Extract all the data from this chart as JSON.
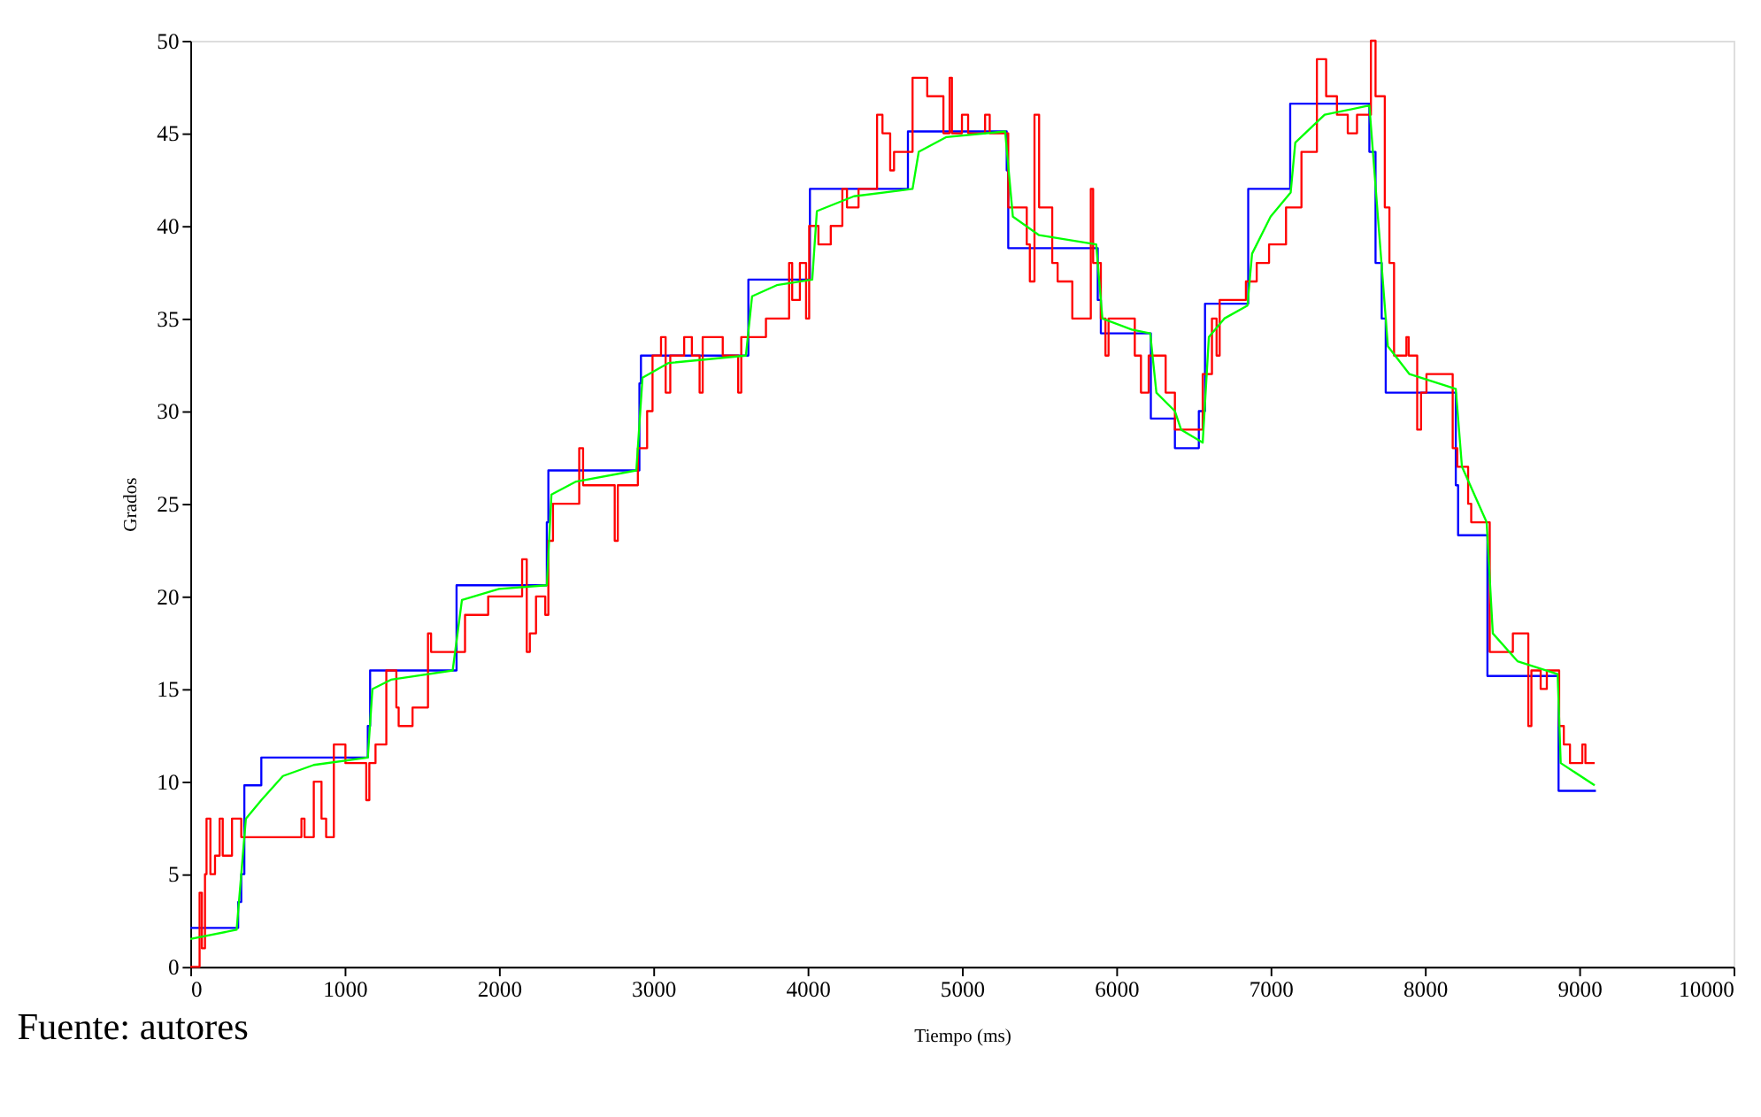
{
  "chart_data": {
    "type": "line",
    "xlabel": "Tiempo (ms)",
    "ylabel": "Grados",
    "annotations": [
      "Fuente: autores"
    ],
    "xlim": [
      0,
      10000
    ],
    "xticks": [
      0,
      1000,
      2000,
      3000,
      4000,
      5000,
      6000,
      7000,
      8000,
      9000,
      10000
    ],
    "ylim": [
      0,
      50
    ],
    "yticks": [
      0,
      5,
      10,
      15,
      20,
      25,
      30,
      35,
      40,
      45,
      50
    ],
    "grid": false,
    "line_style": "solid",
    "marker": "none",
    "series": [
      {
        "type": "step",
        "color": "#0000ff",
        "x": [
          0,
          310,
          330,
          350,
          460,
          1150,
          1165,
          1725,
          2310,
          2320,
          2910,
          2920,
          3616,
          4015,
          4650,
          5290,
          5300,
          5880,
          5900,
          6224,
          6380,
          6535,
          6575,
          6855,
          7127,
          7640,
          7680,
          7720,
          7746,
          8200,
          8215,
          8405,
          8866,
          9108
        ],
        "values": [
          2.1,
          3.5,
          5,
          9.8,
          11.3,
          13,
          16.0,
          20.6,
          24,
          26.8,
          31.5,
          33.0,
          37.1,
          42.0,
          45.1,
          43,
          38.8,
          36,
          34.2,
          29.6,
          28.0,
          30,
          35.8,
          42.0,
          46.6,
          44,
          38,
          35,
          31.0,
          26,
          23.3,
          15.7,
          9.5,
          9.5
        ]
      },
      {
        "type": "step",
        "color": "#ff0000",
        "x": [
          0,
          60,
          75,
          95,
          105,
          130,
          160,
          190,
          210,
          270,
          330,
          720,
          740,
          800,
          850,
          880,
          930,
          1005,
          1140,
          1160,
          1200,
          1270,
          1335,
          1350,
          1440,
          1540,
          1560,
          1780,
          1930,
          2150,
          2180,
          2200,
          2240,
          2300,
          2320,
          2350,
          2520,
          2545,
          2750,
          2770,
          2900,
          2960,
          2995,
          3050,
          3080,
          3110,
          3200,
          3250,
          3300,
          3320,
          3450,
          3550,
          3570,
          3730,
          3880,
          3900,
          3950,
          3990,
          4010,
          4070,
          4150,
          4225,
          4255,
          4330,
          4450,
          4485,
          4535,
          4560,
          4680,
          4775,
          4880,
          4920,
          4935,
          5000,
          5040,
          5150,
          5180,
          5300,
          5420,
          5440,
          5470,
          5500,
          5585,
          5620,
          5715,
          5835,
          5850,
          5900,
          5930,
          5950,
          6120,
          6160,
          6210,
          6320,
          6380,
          6560,
          6620,
          6650,
          6670,
          6840,
          6910,
          6990,
          7100,
          7200,
          7300,
          7360,
          7430,
          7500,
          7560,
          7650,
          7680,
          7740,
          7770,
          7800,
          7880,
          7895,
          7950,
          7975,
          8010,
          8180,
          8210,
          8280,
          8300,
          8420,
          8570,
          8670,
          8690,
          8750,
          8790,
          8870,
          8900,
          8940,
          9020,
          9040,
          9100
        ],
        "values": [
          0,
          4,
          1,
          5,
          8,
          5,
          6,
          8,
          6,
          8,
          7,
          8,
          7,
          10,
          8,
          7,
          12,
          11,
          9,
          11,
          12,
          16,
          14,
          13,
          14,
          18,
          17,
          19,
          20,
          22,
          17,
          18,
          20,
          19,
          23,
          25,
          28,
          26,
          23,
          26,
          28,
          30,
          33,
          34,
          31,
          33,
          34,
          33,
          31,
          34,
          33,
          31,
          34,
          35,
          38,
          36,
          38,
          35,
          40,
          39,
          40,
          42,
          41,
          42,
          46,
          45,
          43,
          44,
          48,
          47,
          45,
          48,
          45,
          46,
          45,
          46,
          45,
          41,
          39,
          37,
          46,
          41,
          38,
          37,
          35,
          42,
          38,
          35,
          33,
          35,
          33,
          31,
          33,
          31,
          29,
          32,
          35,
          33,
          36,
          37,
          38,
          39,
          41,
          44,
          49,
          47,
          46,
          45,
          46,
          50,
          47,
          41,
          38,
          33,
          34,
          33,
          29,
          31,
          32,
          28,
          27,
          25,
          24,
          17,
          18,
          13,
          16,
          15,
          16,
          13,
          12,
          11,
          12,
          11,
          11
        ]
      },
      {
        "type": "line",
        "color": "#00ff00",
        "x": [
          0,
          300,
          330,
          360,
          460,
          600,
          800,
          1150,
          1180,
          1300,
          1700,
          1760,
          2000,
          2310,
          2340,
          2500,
          2890,
          2930,
          3100,
          3600,
          3640,
          3800,
          4030,
          4060,
          4300,
          4680,
          4720,
          4900,
          5280,
          5330,
          5500,
          5870,
          5910,
          6100,
          6220,
          6260,
          6380,
          6420,
          6560,
          6600,
          6700,
          6850,
          6880,
          7000,
          7130,
          7160,
          7350,
          7640,
          7700,
          7760,
          7900,
          8200,
          8240,
          8400,
          8440,
          8600,
          8860,
          8880,
          9100
        ],
        "values": [
          1.5,
          2.0,
          5.0,
          8.0,
          9.0,
          10.3,
          10.9,
          11.3,
          15.0,
          15.5,
          16.0,
          19.8,
          20.4,
          20.6,
          25.5,
          26.2,
          26.8,
          31.8,
          32.6,
          33.0,
          36.2,
          36.8,
          37.1,
          40.8,
          41.6,
          42.0,
          44.0,
          44.8,
          45.1,
          40.5,
          39.5,
          39.0,
          35.0,
          34.4,
          34.2,
          31.0,
          30.0,
          29.0,
          28.3,
          34.0,
          35.0,
          35.7,
          38.5,
          40.5,
          41.8,
          44.5,
          46.0,
          46.5,
          40.0,
          33.5,
          32.0,
          31.2,
          27.0,
          24.0,
          18.0,
          16.5,
          15.8,
          11.0,
          9.8
        ]
      }
    ]
  }
}
